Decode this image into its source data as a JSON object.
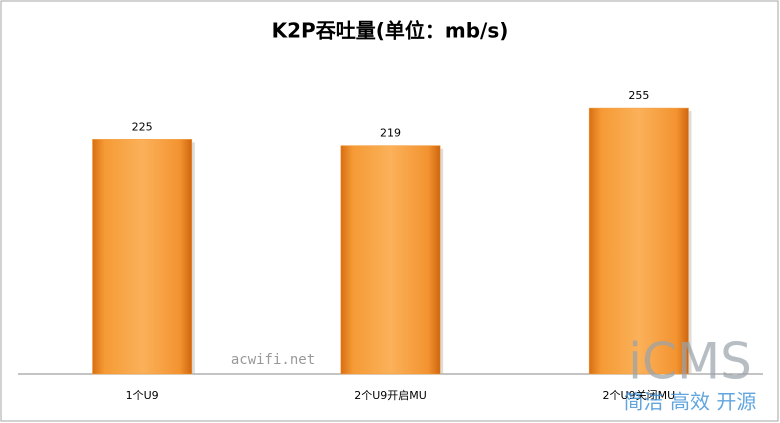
{
  "chart_data": {
    "type": "bar",
    "title": "K2P吞吐量(单位：mb/s)",
    "categories": [
      "1个U9",
      "2个U9开启MU",
      "2个U9关闭MU"
    ],
    "values": [
      225,
      219,
      255
    ],
    "color": "#f39a36",
    "ylim": [
      0,
      350
    ]
  },
  "watermarks": [
    "acwifi.net",
    "iCMS",
    "简洁 高效 开源"
  ]
}
